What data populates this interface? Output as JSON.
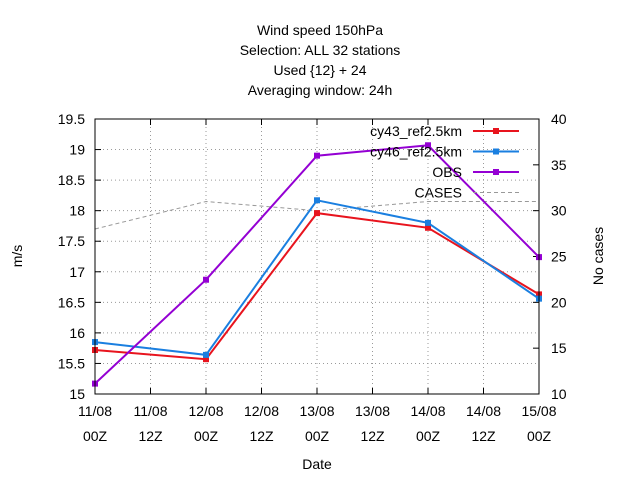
{
  "chart_data": {
    "type": "line",
    "title_lines": [
      "Wind speed 150hPa",
      "Selection: ALL     32 stations",
      "Used {12} + 24",
      "Averaging window: 24h"
    ],
    "xlabel": "Date",
    "ylabel": "m/s",
    "y2label": "No cases",
    "x_ticks": [
      {
        "day": "11/08",
        "hour": "00Z"
      },
      {
        "day": "11/08",
        "hour": "12Z"
      },
      {
        "day": "12/08",
        "hour": "00Z"
      },
      {
        "day": "12/08",
        "hour": "12Z"
      },
      {
        "day": "13/08",
        "hour": "00Z"
      },
      {
        "day": "13/08",
        "hour": "12Z"
      },
      {
        "day": "14/08",
        "hour": "00Z"
      },
      {
        "day": "14/08",
        "hour": "12Z"
      },
      {
        "day": "15/08",
        "hour": "00Z"
      }
    ],
    "ylim": [
      15,
      19.5
    ],
    "y_ticks": [
      "15",
      "15.5",
      "16",
      "16.5",
      "17",
      "17.5",
      "18",
      "18.5",
      "19",
      "19.5"
    ],
    "y2lim": [
      10,
      40
    ],
    "y2_ticks": [
      "10",
      "15",
      "20",
      "25",
      "30",
      "35",
      "40"
    ],
    "grid": true,
    "legend_position": "top-right",
    "series": [
      {
        "name": "cy43_ref2.5km",
        "color": "#e8141e",
        "axis": "y",
        "dashed": false,
        "marker": "square",
        "x": [
          "11/08 00Z",
          "12/08 00Z",
          "13/08 00Z",
          "14/08 00Z",
          "15/08 00Z"
        ],
        "values": [
          15.72,
          15.57,
          17.96,
          17.72,
          16.63
        ]
      },
      {
        "name": "cy46_ref2.5km",
        "color": "#1a7fe0",
        "axis": "y",
        "dashed": false,
        "marker": "square",
        "x": [
          "11/08 00Z",
          "12/08 00Z",
          "13/08 00Z",
          "14/08 00Z",
          "15/08 00Z"
        ],
        "values": [
          15.85,
          15.64,
          18.17,
          17.8,
          16.56
        ]
      },
      {
        "name": "OBS",
        "color": "#9400d3",
        "axis": "y",
        "dashed": false,
        "marker": "square",
        "x": [
          "11/08 00Z",
          "12/08 00Z",
          "13/08 00Z",
          "14/08 00Z",
          "15/08 00Z"
        ],
        "values": [
          15.17,
          16.87,
          18.9,
          19.07,
          17.24
        ]
      },
      {
        "name": "CASES",
        "color": "#999999",
        "axis": "y2",
        "dashed": true,
        "marker": "none",
        "x": [
          "11/08 00Z",
          "12/08 00Z",
          "13/08 00Z",
          "14/08 00Z",
          "15/08 00Z"
        ],
        "values": [
          28,
          31,
          30,
          31,
          31
        ]
      }
    ]
  }
}
